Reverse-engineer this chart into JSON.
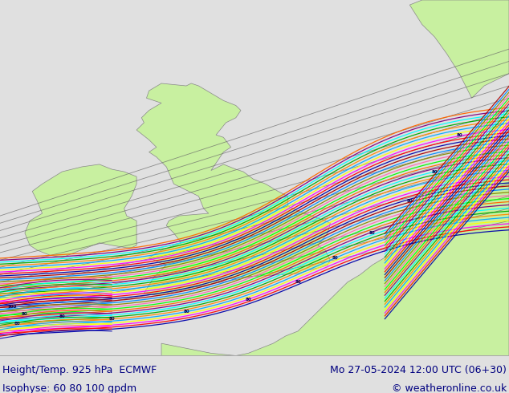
{
  "title_left": "Height/Temp. 925 hPa  ECMWF",
  "title_right": "Mo 27-05-2024 12:00 UTC (06+30)",
  "subtitle_left": "Isophyse: 60 80 100 gpdm",
  "subtitle_right": "© weatheronline.co.uk",
  "bg_color": "#e0e0e0",
  "land_color": "#c8f0a0",
  "sea_color": "#e0e0e0",
  "border_color": "#888888",
  "footer_bg": "#ffffff",
  "footer_text_color": "#000080",
  "title_fontsize": 9,
  "subtitle_fontsize": 9,
  "map_lon_min": -11.5,
  "map_lon_max": 9.0,
  "map_lat_min": 47.5,
  "map_lat_max": 62.0
}
